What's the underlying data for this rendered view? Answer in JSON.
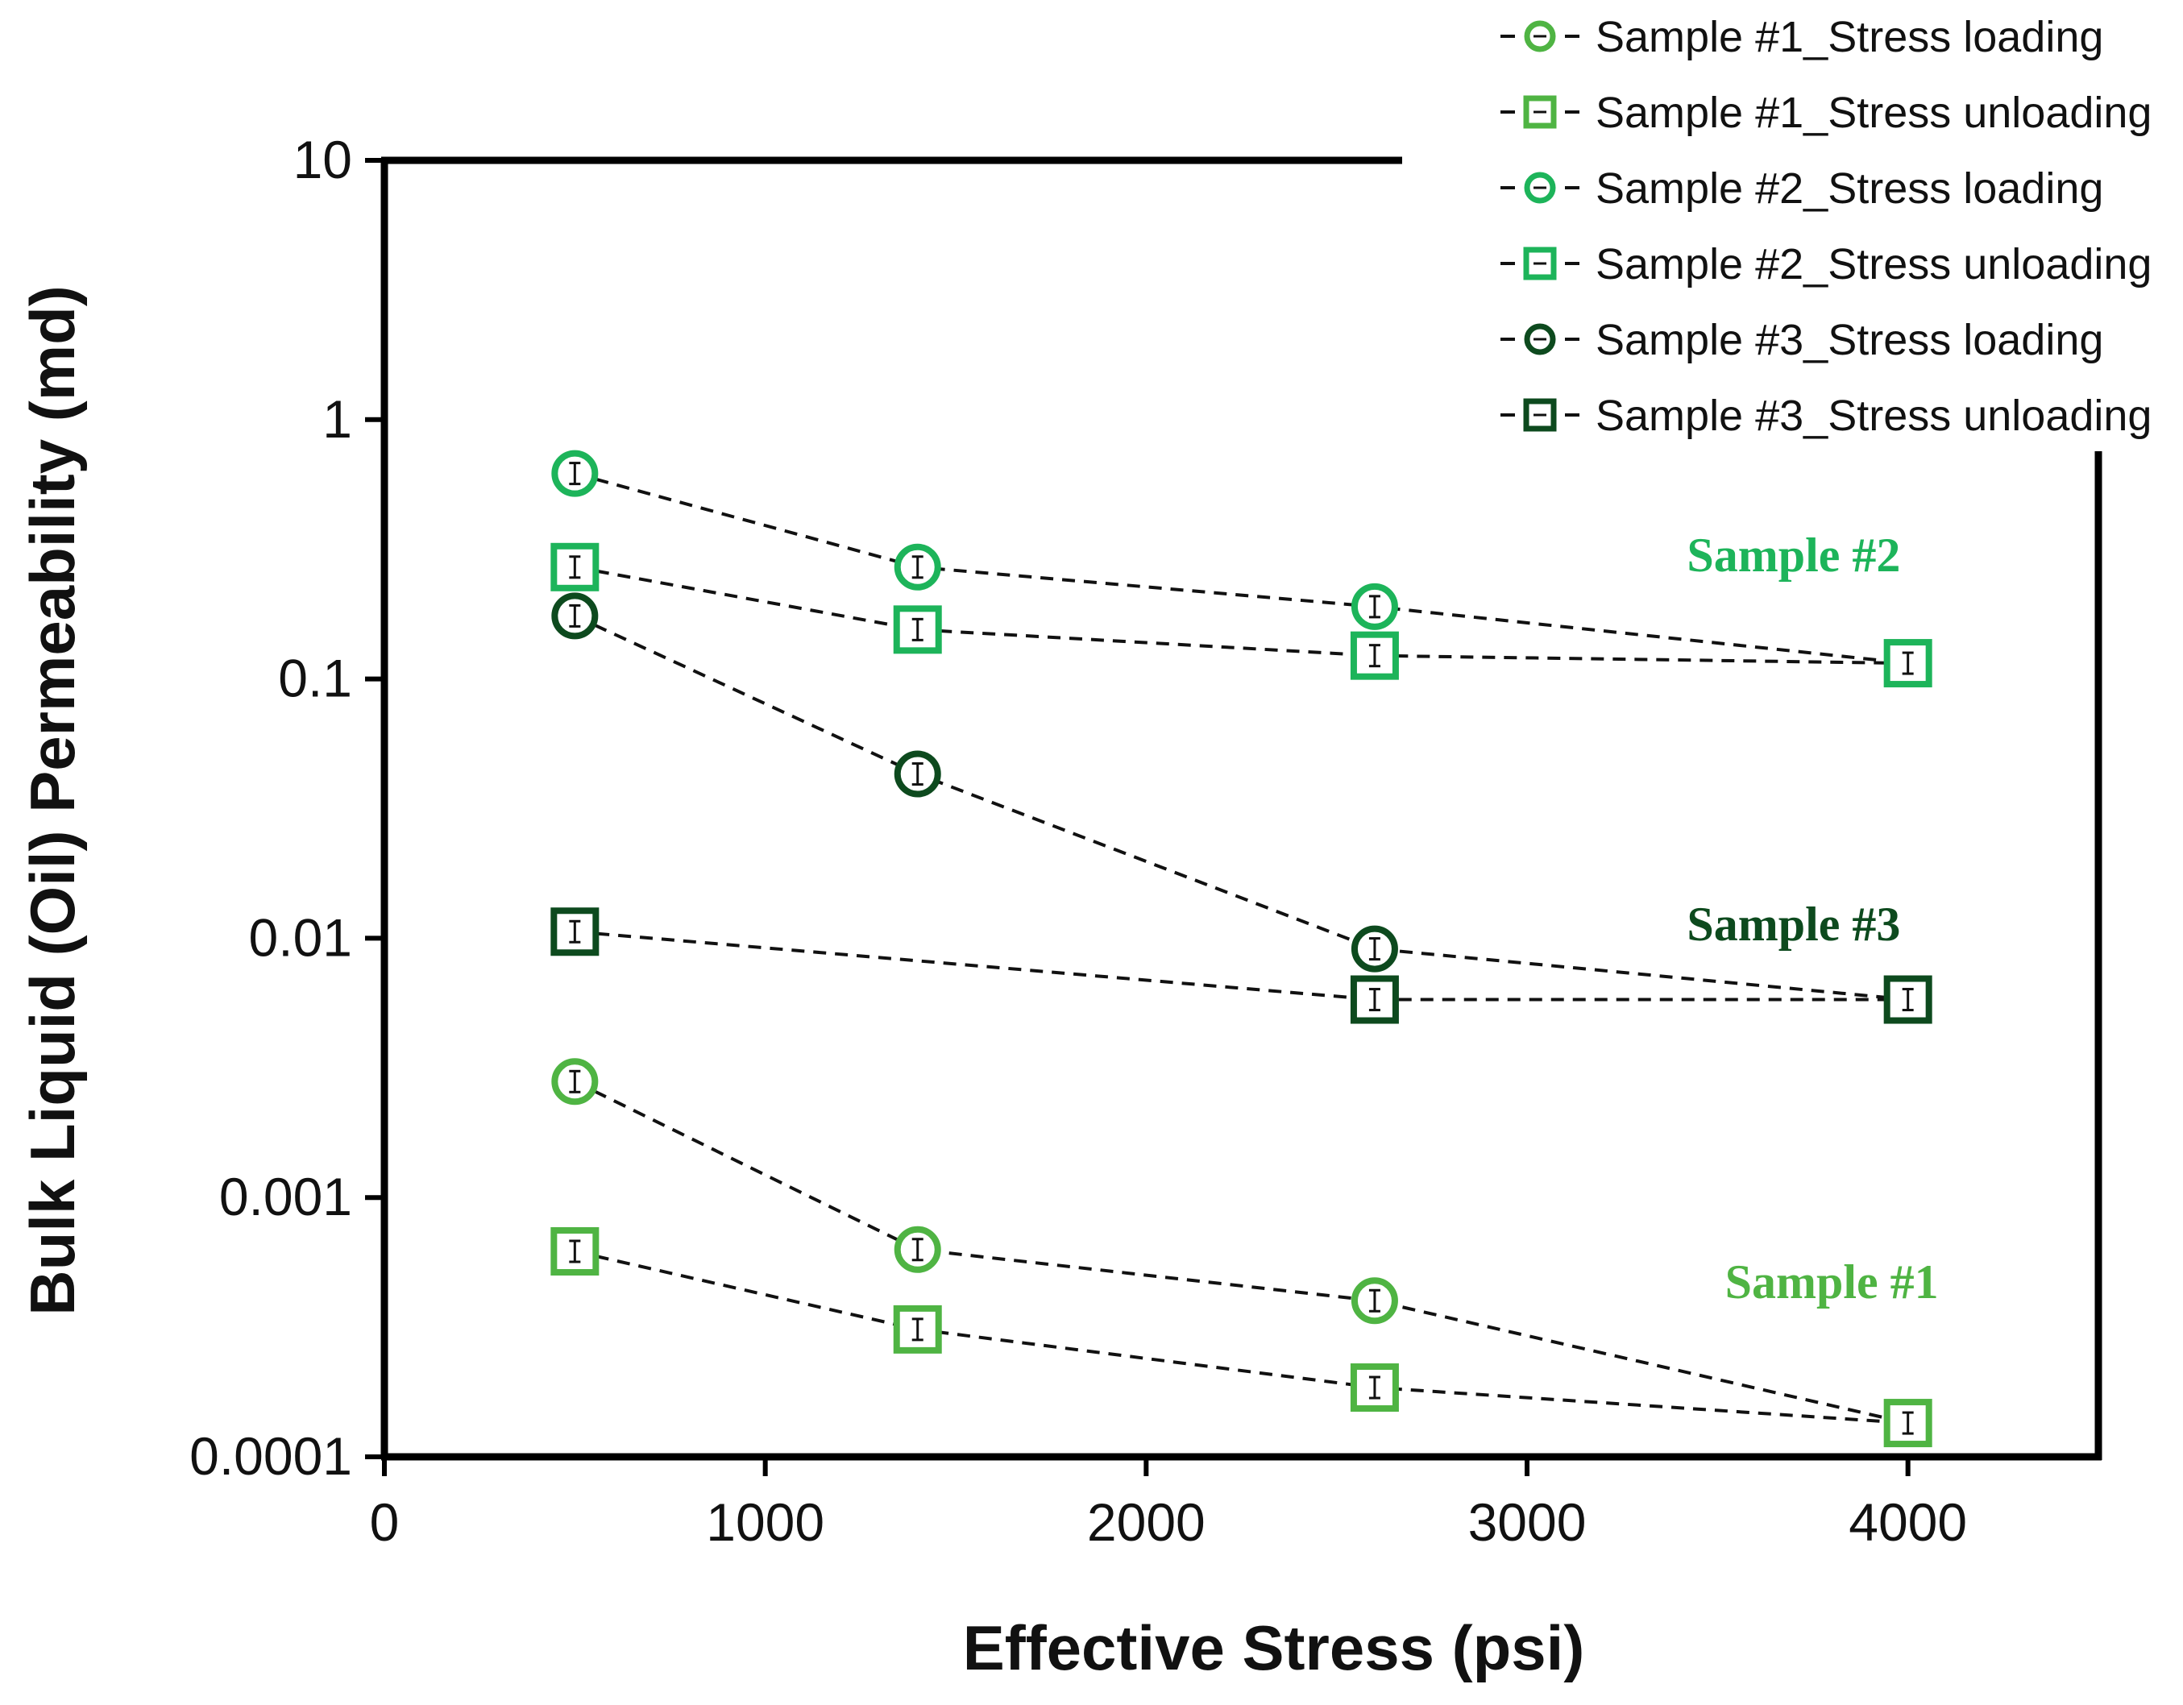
{
  "chart_data": {
    "type": "line",
    "title": "",
    "xlabel": "Effective Stress (psi)",
    "ylabel": "Bulk Liquid (Oil) Permeability (md)",
    "xlim": [
      0,
      4500
    ],
    "ylim": [
      0.0001,
      10
    ],
    "yscale": "log",
    "xticks": [
      0,
      1000,
      2000,
      3000,
      4000
    ],
    "xtick_labels": [
      "0",
      "1000",
      "2000",
      "3000",
      "4000"
    ],
    "yticks": [
      0.0001,
      0.001,
      0.01,
      0.1,
      1,
      10
    ],
    "ytick_labels": [
      "0.0001",
      "0.001",
      "0.01",
      "0.1",
      "1",
      "10"
    ],
    "grid": false,
    "legend_position": "top-right",
    "series": [
      {
        "name": "Sample #1_Stress loading",
        "marker": "circle",
        "color": "#4fb443",
        "x": [
          500,
          1400,
          2600,
          4000
        ],
        "y": [
          0.0028,
          0.00063,
          0.0004,
          0.000135
        ]
      },
      {
        "name": "Sample #1_Stress unloading",
        "marker": "square",
        "color": "#4fb443",
        "x": [
          500,
          1400,
          2600,
          4000
        ],
        "y": [
          0.00062,
          0.00031,
          0.000185,
          0.000135
        ]
      },
      {
        "name": "Sample #2_Stress loading",
        "marker": "circle",
        "color": "#1db45a",
        "x": [
          500,
          1400,
          2600,
          4000
        ],
        "y": [
          0.62,
          0.27,
          0.19,
          0.115
        ]
      },
      {
        "name": "Sample #2_Stress unloading",
        "marker": "square",
        "color": "#1db45a",
        "x": [
          500,
          1400,
          2600,
          4000
        ],
        "y": [
          0.27,
          0.155,
          0.123,
          0.115
        ]
      },
      {
        "name": "Sample #3_Stress loading",
        "marker": "circle",
        "color": "#0d4a1e",
        "x": [
          500,
          1400,
          2600,
          4000
        ],
        "y": [
          0.175,
          0.043,
          0.0091,
          0.0058
        ]
      },
      {
        "name": "Sample #3_Stress unloading",
        "marker": "square",
        "color": "#0d4a1e",
        "x": [
          500,
          2600,
          4000
        ],
        "y": [
          0.0106,
          0.0058,
          0.0058
        ]
      }
    ],
    "annotations": [
      {
        "text": "Sample #2",
        "x": 3700,
        "y": 0.26,
        "color": "#1db45a"
      },
      {
        "text": "Sample #3",
        "x": 3700,
        "y": 0.0098,
        "color": "#0d4a1e"
      },
      {
        "text": "Sample #1",
        "x": 3800,
        "y": 0.00041,
        "color": "#4fb443"
      }
    ]
  }
}
